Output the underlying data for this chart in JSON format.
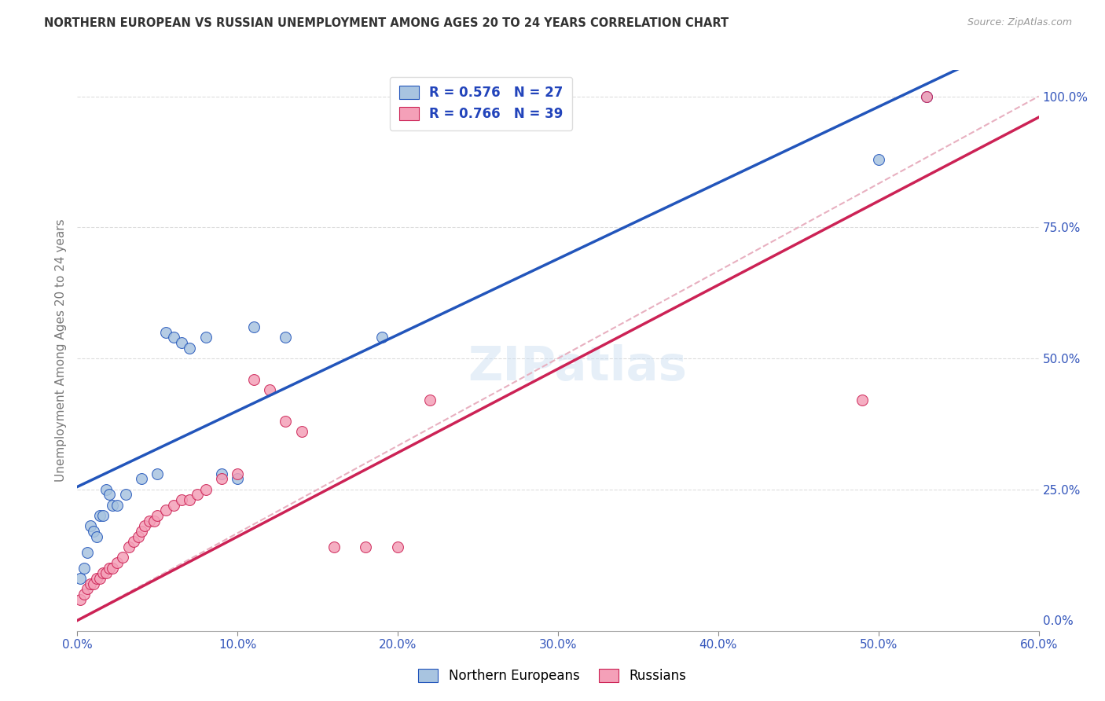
{
  "title": "NORTHERN EUROPEAN VS RUSSIAN UNEMPLOYMENT AMONG AGES 20 TO 24 YEARS CORRELATION CHART",
  "source": "Source: ZipAtlas.com",
  "ylabel": "Unemployment Among Ages 20 to 24 years",
  "xlim": [
    0.0,
    0.6
  ],
  "ylim": [
    -0.02,
    1.05
  ],
  "xtick_labels": [
    "0.0%",
    "10.0%",
    "20.0%",
    "30.0%",
    "40.0%",
    "50.0%",
    "60.0%"
  ],
  "xtick_vals": [
    0.0,
    0.1,
    0.2,
    0.3,
    0.4,
    0.5,
    0.6
  ],
  "ytick_labels_right": [
    "0.0%",
    "25.0%",
    "50.0%",
    "75.0%",
    "100.0%"
  ],
  "ytick_vals_right": [
    0.0,
    0.25,
    0.5,
    0.75,
    1.0
  ],
  "blue_R": 0.576,
  "blue_N": 27,
  "pink_R": 0.766,
  "pink_N": 39,
  "blue_color": "#a8c4e0",
  "blue_line_color": "#2255bb",
  "pink_color": "#f4a0b8",
  "pink_line_color": "#cc2255",
  "ref_line_color": "#cccccc",
  "legend_text_color": "#2244bb",
  "background_color": "#ffffff",
  "grid_color": "#dddddd",
  "watermark": "ZIPatlas",
  "blue_line_intercept": 0.255,
  "blue_line_slope": 1.45,
  "pink_line_intercept": 0.0,
  "pink_line_slope": 1.6,
  "blue_x": [
    0.002,
    0.004,
    0.006,
    0.008,
    0.01,
    0.012,
    0.014,
    0.016,
    0.018,
    0.02,
    0.022,
    0.025,
    0.03,
    0.04,
    0.05,
    0.055,
    0.06,
    0.065,
    0.07,
    0.08,
    0.09,
    0.1,
    0.11,
    0.13,
    0.19,
    0.5,
    0.53
  ],
  "blue_y": [
    0.08,
    0.1,
    0.13,
    0.18,
    0.17,
    0.16,
    0.2,
    0.2,
    0.25,
    0.24,
    0.22,
    0.22,
    0.24,
    0.27,
    0.28,
    0.55,
    0.54,
    0.53,
    0.52,
    0.54,
    0.28,
    0.27,
    0.56,
    0.54,
    0.54,
    0.88,
    1.0
  ],
  "pink_x": [
    0.002,
    0.004,
    0.006,
    0.008,
    0.01,
    0.012,
    0.014,
    0.016,
    0.018,
    0.02,
    0.022,
    0.025,
    0.028,
    0.032,
    0.035,
    0.038,
    0.04,
    0.042,
    0.045,
    0.048,
    0.05,
    0.055,
    0.06,
    0.065,
    0.07,
    0.075,
    0.08,
    0.09,
    0.1,
    0.11,
    0.12,
    0.13,
    0.14,
    0.16,
    0.18,
    0.2,
    0.22,
    0.49,
    0.53
  ],
  "pink_y": [
    0.04,
    0.05,
    0.06,
    0.07,
    0.07,
    0.08,
    0.08,
    0.09,
    0.09,
    0.1,
    0.1,
    0.11,
    0.12,
    0.14,
    0.15,
    0.16,
    0.17,
    0.18,
    0.19,
    0.19,
    0.2,
    0.21,
    0.22,
    0.23,
    0.23,
    0.24,
    0.25,
    0.27,
    0.28,
    0.46,
    0.44,
    0.38,
    0.36,
    0.14,
    0.14,
    0.14,
    0.42,
    0.42,
    1.0
  ]
}
